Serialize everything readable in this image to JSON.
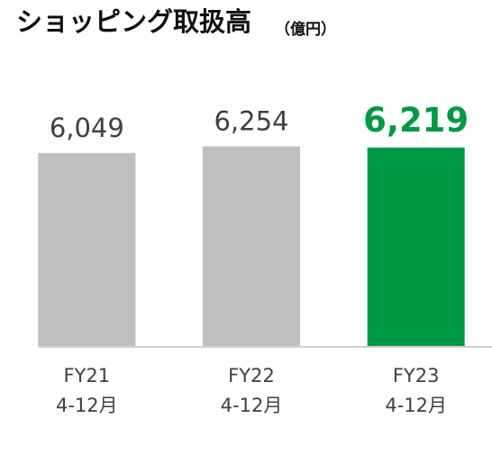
{
  "chart_data": {
    "type": "bar",
    "title": "ショッピング取扱高",
    "subtitle": "（億円）",
    "categories": [
      "FY21\n4-12月",
      "FY22\n4-12月",
      "FY23\n4-12月"
    ],
    "values": [
      6049,
      6254,
      6219
    ],
    "value_labels": [
      "6,049",
      "6,254",
      "6,219"
    ],
    "colors": [
      "#bfbfbf",
      "#bfbfbf",
      "#009a44"
    ],
    "highlight_index": 2,
    "ylim": [
      0,
      7000
    ]
  }
}
